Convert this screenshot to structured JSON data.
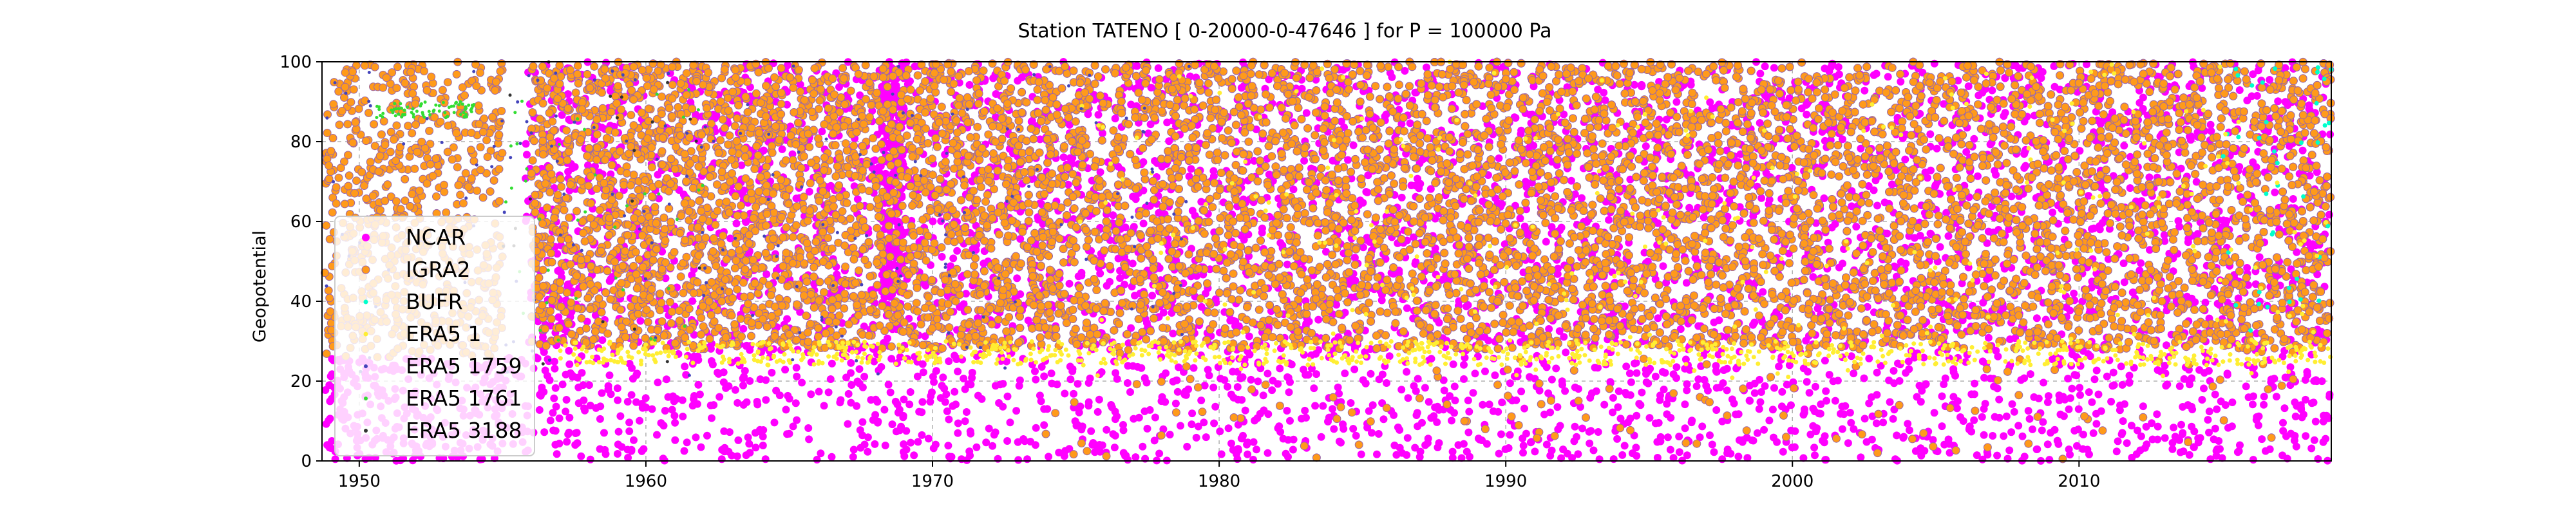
{
  "chart_data": {
    "type": "scatter",
    "title": "Station  TATENO [ 0-20000-0-47646 ]  for P = 100000 Pa",
    "xlabel": "",
    "ylabel": "Geopotential",
    "xlim": [
      1948.7,
      2018.8
    ],
    "ylim": [
      0,
      100
    ],
    "x_ticks": [
      1950,
      1960,
      1970,
      1980,
      1990,
      2000,
      2010
    ],
    "y_ticks": [
      0,
      20,
      40,
      60,
      80,
      100
    ],
    "grid": true,
    "legend_position": "center-left",
    "series": [
      {
        "name": "NCAR",
        "color": "#ff00ff",
        "marker": "dot-large",
        "coverage": [
          1948.8,
          2018.8
        ],
        "bands": [
          {
            "x": [
              1955.8,
              2018.8
            ],
            "y": [
              0,
              100
            ],
            "n": 5200
          },
          {
            "x": [
              1948.8,
              1955.8
            ],
            "y": [
              0,
              26
            ],
            "n": 300
          },
          {
            "x": [
              1968.2,
              1969.0
            ],
            "y": [
              40,
              100
            ],
            "n": 260
          }
        ]
      },
      {
        "name": "IGRA2",
        "color": "#ff9a1a",
        "marker": "dot-outlined",
        "coverage": [
          1948.8,
          2018.8
        ],
        "bands": [
          {
            "x": [
              1948.8,
              1955.0
            ],
            "y": [
              26,
              100
            ],
            "n": 700
          },
          {
            "x": [
              1956.0,
              1973.0
            ],
            "y": [
              28,
              100
            ],
            "n": 2600
          },
          {
            "x": [
              1973.0,
              2018.8
            ],
            "y": [
              28,
              100
            ],
            "n": 12500
          },
          {
            "x": [
              1973.0,
              2018.8
            ],
            "y": [
              0,
              30
            ],
            "n": 120
          }
        ]
      },
      {
        "name": "BUFR",
        "color": "#00ffcc",
        "marker": "dot-small",
        "bands": [
          {
            "x": [
              2015.0,
              2018.8
            ],
            "y": [
              30,
              100
            ],
            "n": 40
          }
        ]
      },
      {
        "name": "ERA5 1",
        "color": "#ffee33",
        "marker": "dot-small",
        "bands": [
          {
            "x": [
              1957.0,
              2018.8
            ],
            "y": [
              24,
              30
            ],
            "n": 900
          },
          {
            "x": [
              1975.0,
              2018.8
            ],
            "y": [
              20,
              100
            ],
            "n": 260
          }
        ]
      },
      {
        "name": "ERA5 1759",
        "color": "#4444bb",
        "marker": "dot-tiny",
        "bands": [
          {
            "x": [
              1948.8,
              1979.0
            ],
            "y": [
              20,
              100
            ],
            "n": 180
          }
        ]
      },
      {
        "name": "ERA5 1761",
        "color": "#33dd33",
        "marker": "dot-tiny",
        "bands": [
          {
            "x": [
              1950.5,
              1954.0
            ],
            "y": [
              86,
              90
            ],
            "n": 70
          },
          {
            "x": [
              1955.0,
              1962.0
            ],
            "y": [
              30,
              95
            ],
            "n": 40
          }
        ]
      },
      {
        "name": "ERA5 3188",
        "color": "#333333",
        "marker": "dot-tiny",
        "bands": [
          {
            "x": [
              1955.0,
              1964.0
            ],
            "y": [
              20,
              100
            ],
            "n": 20
          }
        ]
      }
    ]
  }
}
